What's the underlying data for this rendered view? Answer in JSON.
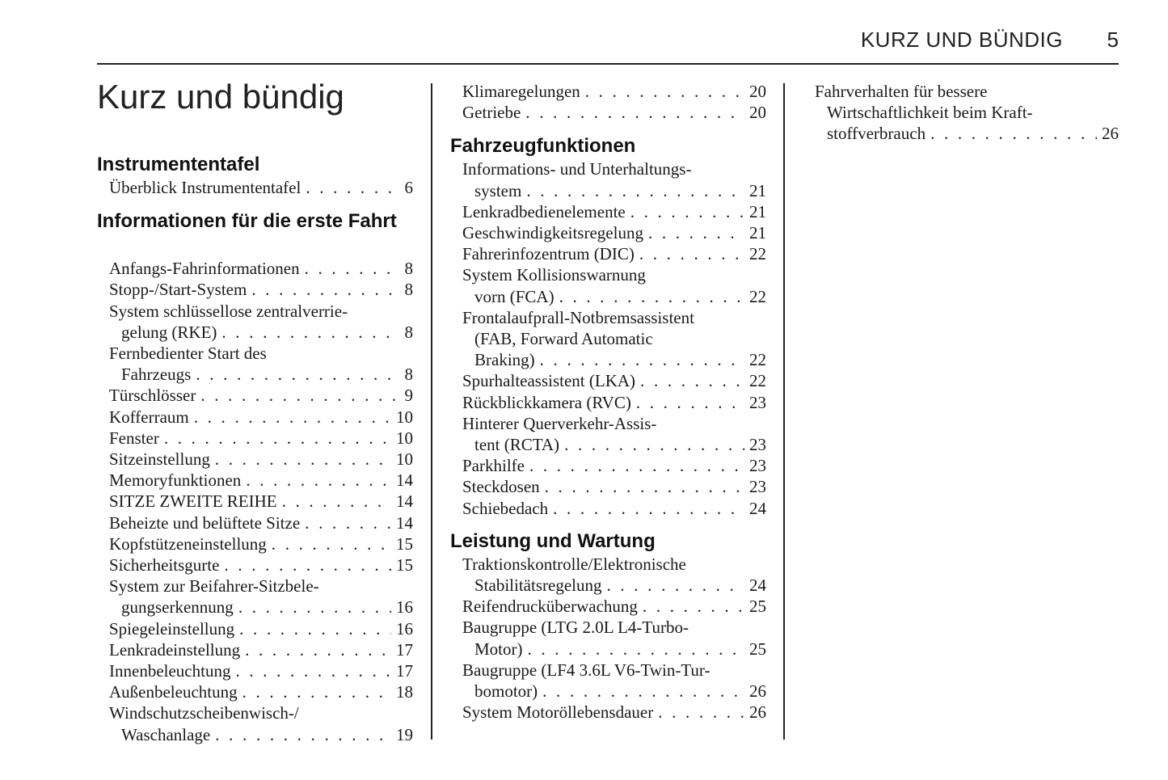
{
  "header": {
    "running_title": "KURZ UND BÜNDIG",
    "page_number": "5"
  },
  "title": "Kurz und bündig",
  "columns": [
    {
      "sections": [
        {
          "heading": "Instrumententafel",
          "entries": [
            {
              "lines": [
                "Überblick Instrumententafel"
              ],
              "page": "6"
            }
          ]
        },
        {
          "heading": "Informationen für die erste Fahrt",
          "entries": [
            {
              "lines": [
                "Anfangs-Fahrinformationen"
              ],
              "page": "8"
            },
            {
              "lines": [
                "Stopp-/Start-System"
              ],
              "page": "8"
            },
            {
              "lines": [
                "System schlüssellose zentralverrie-",
                "gelung (RKE)"
              ],
              "page": "8"
            },
            {
              "lines": [
                "Fernbedienter Start des",
                "Fahrzeugs"
              ],
              "page": "8"
            },
            {
              "lines": [
                "Türschlösser"
              ],
              "page": "9"
            },
            {
              "lines": [
                "Kofferraum"
              ],
              "page": "10"
            },
            {
              "lines": [
                "Fenster"
              ],
              "page": "10"
            },
            {
              "lines": [
                "Sitzeinstellung"
              ],
              "page": "10"
            },
            {
              "lines": [
                "Memoryfunktionen"
              ],
              "page": "14"
            },
            {
              "lines": [
                "SITZE ZWEITE REIHE"
              ],
              "page": "14"
            },
            {
              "lines": [
                "Beheizte und belüftete Sitze"
              ],
              "page": "14"
            },
            {
              "lines": [
                "Kopfstützeneinstellung"
              ],
              "page": "15"
            },
            {
              "lines": [
                "Sicherheitsgurte"
              ],
              "page": "15"
            },
            {
              "lines": [
                "System zur Beifahrer-Sitzbele-",
                "gungserkennung"
              ],
              "page": "16"
            },
            {
              "lines": [
                "Spiegeleinstellung"
              ],
              "page": "16"
            },
            {
              "lines": [
                "Lenkradeinstellung"
              ],
              "page": "17"
            },
            {
              "lines": [
                "Innenbeleuchtung"
              ],
              "page": "17"
            },
            {
              "lines": [
                "Außenbeleuchtung"
              ],
              "page": "18"
            },
            {
              "lines": [
                "Windschutzscheibenwisch-/",
                "Waschanlage"
              ],
              "page": "19"
            }
          ]
        }
      ]
    },
    {
      "sections": [
        {
          "heading": "",
          "entries": [
            {
              "lines": [
                "Klimaregelungen"
              ],
              "page": "20"
            },
            {
              "lines": [
                "Getriebe"
              ],
              "page": "20"
            }
          ]
        },
        {
          "heading": "Fahrzeugfunktionen",
          "entries": [
            {
              "lines": [
                "Informations- und Unterhaltungs-",
                "system"
              ],
              "page": "21"
            },
            {
              "lines": [
                "Lenkradbedienelemente"
              ],
              "page": "21"
            },
            {
              "lines": [
                "Geschwindigkeitsregelung"
              ],
              "page": "21"
            },
            {
              "lines": [
                "Fahrerinfozentrum (DIC)"
              ],
              "page": "22"
            },
            {
              "lines": [
                "System Kollisionswarnung",
                "vorn (FCA)"
              ],
              "page": "22"
            },
            {
              "lines": [
                "Frontalaufprall-Notbremsassistent",
                "(FAB, Forward Automatic",
                "Braking)"
              ],
              "page": "22"
            },
            {
              "lines": [
                "Spurhalteassistent (LKA)"
              ],
              "page": "22"
            },
            {
              "lines": [
                "Rückblickkamera (RVC)"
              ],
              "page": "23"
            },
            {
              "lines": [
                "Hinterer Querverkehr-Assis-",
                "tent (RCTA)"
              ],
              "page": "23"
            },
            {
              "lines": [
                "Parkhilfe"
              ],
              "page": "23"
            },
            {
              "lines": [
                "Steckdosen"
              ],
              "page": "23"
            },
            {
              "lines": [
                "Schiebedach"
              ],
              "page": "24"
            }
          ]
        },
        {
          "heading": "Leistung und Wartung",
          "entries": [
            {
              "lines": [
                "Traktionskontrolle/Elektronische",
                "Stabilitätsregelung"
              ],
              "page": "24"
            },
            {
              "lines": [
                "Reifendrucküberwachung"
              ],
              "page": "25"
            },
            {
              "lines": [
                "Baugruppe (LTG 2.0L L4-Turbo-",
                "Motor)"
              ],
              "page": "25"
            },
            {
              "lines": [
                "Baugruppe (LF4 3.6L V6-Twin-Tur-",
                "bomotor)"
              ],
              "page": "26"
            },
            {
              "lines": [
                "System Motoröllebensdauer"
              ],
              "page": "26"
            }
          ]
        }
      ]
    },
    {
      "sections": [
        {
          "heading": "",
          "entries": [
            {
              "lines": [
                "Fahrverhalten für bessere",
                "Wirtschaftlichkeit beim Kraft-",
                "stoffverbrauch"
              ],
              "page": "26"
            }
          ]
        }
      ]
    }
  ]
}
